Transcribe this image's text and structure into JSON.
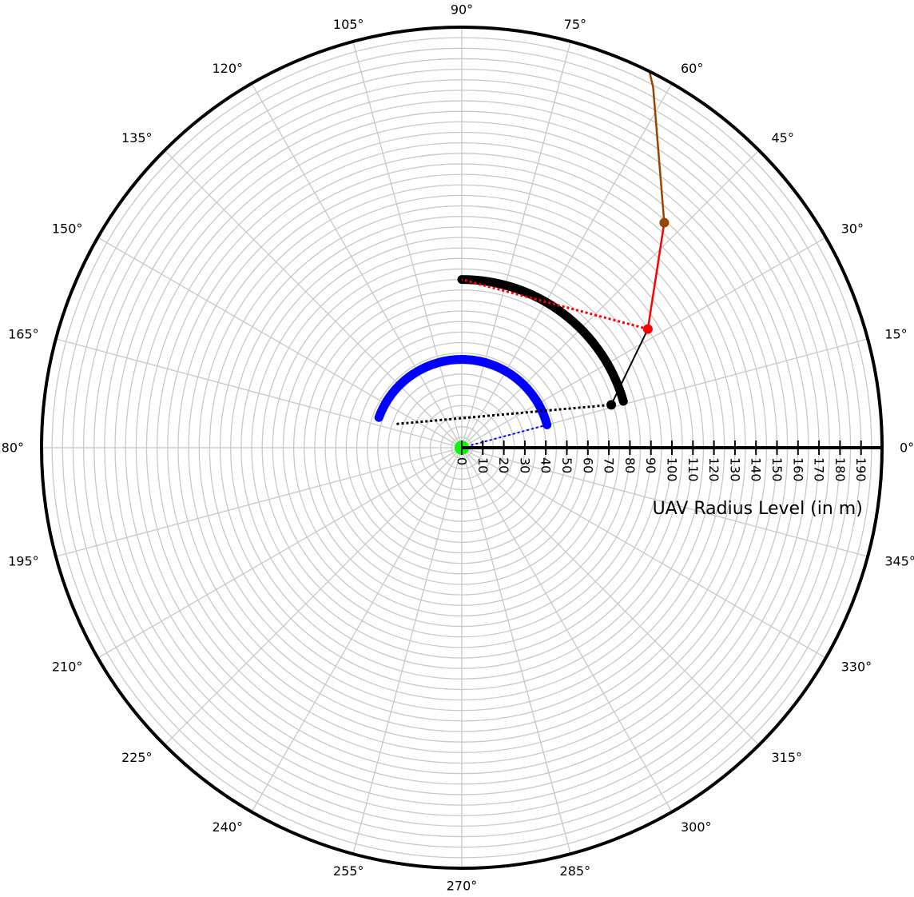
{
  "chart_data": {
    "type": "polar",
    "radial_axis": {
      "label": "UAV Radius Level (in m)",
      "range": [
        0,
        200
      ],
      "ticks": [
        0,
        10,
        20,
        30,
        40,
        50,
        60,
        70,
        80,
        90,
        100,
        110,
        120,
        130,
        140,
        150,
        160,
        170,
        180,
        190
      ],
      "gridlines": [
        5,
        10,
        15,
        20,
        25,
        30,
        35,
        40,
        45,
        50,
        55,
        60,
        65,
        70,
        75,
        80,
        85,
        90,
        95,
        100,
        105,
        110,
        115,
        120,
        125,
        130,
        135,
        140,
        145,
        150,
        155,
        160,
        165,
        170,
        175,
        180,
        185,
        190,
        195,
        200
      ],
      "tick_angle_deg": 0
    },
    "angular_axis": {
      "ticks_deg": [
        0,
        15,
        30,
        45,
        60,
        75,
        90,
        105,
        120,
        135,
        150,
        165,
        180,
        195,
        210,
        225,
        240,
        255,
        270,
        285,
        300,
        315,
        330,
        345
      ],
      "labels": [
        "0°",
        "15°",
        "30°",
        "45°",
        "60°",
        "75°",
        "90°",
        "105°",
        "120°",
        "135°",
        "150°",
        "165°",
        "180°",
        "195°",
        "210°",
        "225°",
        "240°",
        "255°",
        "270°",
        "285°",
        "300°",
        "315°",
        "330°",
        "345°"
      ]
    },
    "grid": true,
    "series": [
      {
        "style": "dotted",
        "color": "#0000ff",
        "width": 2,
        "points": [
          [
            0,
            0
          ],
          [
            15,
            42
          ]
        ]
      },
      {
        "style": "arc",
        "color": "#0000ff",
        "width": 11,
        "r": 42,
        "theta_start": 15,
        "theta_end": 160
      },
      {
        "style": "dotted",
        "color": "#000000",
        "width": 3,
        "points": [
          [
            160,
            33
          ],
          [
            16,
            74
          ]
        ]
      },
      {
        "style": "arc",
        "color": "#000000",
        "width": 11,
        "r": 80,
        "theta_start": 16,
        "theta_end": 90
      },
      {
        "style": "solid",
        "color": "#000000",
        "width": 2,
        "points": [
          [
            16,
            74
          ],
          [
            32.5,
            105
          ]
        ]
      },
      {
        "style": "dotted",
        "color": "#ff0000",
        "width": 3,
        "points": [
          [
            32.5,
            105
          ],
          [
            90,
            80
          ]
        ]
      },
      {
        "style": "solid",
        "color": "#ff0000",
        "width": 2.5,
        "points": [
          [
            32.5,
            105
          ],
          [
            48,
            144
          ]
        ]
      },
      {
        "style": "solid",
        "color": "#994400",
        "width": 2.5,
        "points": [
          [
            48,
            144
          ],
          [
            62,
            194
          ],
          [
            68,
            222
          ]
        ]
      }
    ],
    "markers": [
      {
        "theta": 0,
        "r": 0,
        "color": "#00ff00",
        "size": 9
      },
      {
        "theta": 16,
        "r": 74,
        "color": "#000000",
        "size": 6
      },
      {
        "theta": 32.5,
        "r": 105,
        "color": "#ff0000",
        "size": 6
      },
      {
        "theta": 48,
        "r": 144,
        "color": "#994400",
        "size": 6
      }
    ],
    "colors": {
      "grid": "#c8c8c8",
      "outer_ring": "#000000",
      "axis": "#000000",
      "text": "#000000"
    }
  }
}
